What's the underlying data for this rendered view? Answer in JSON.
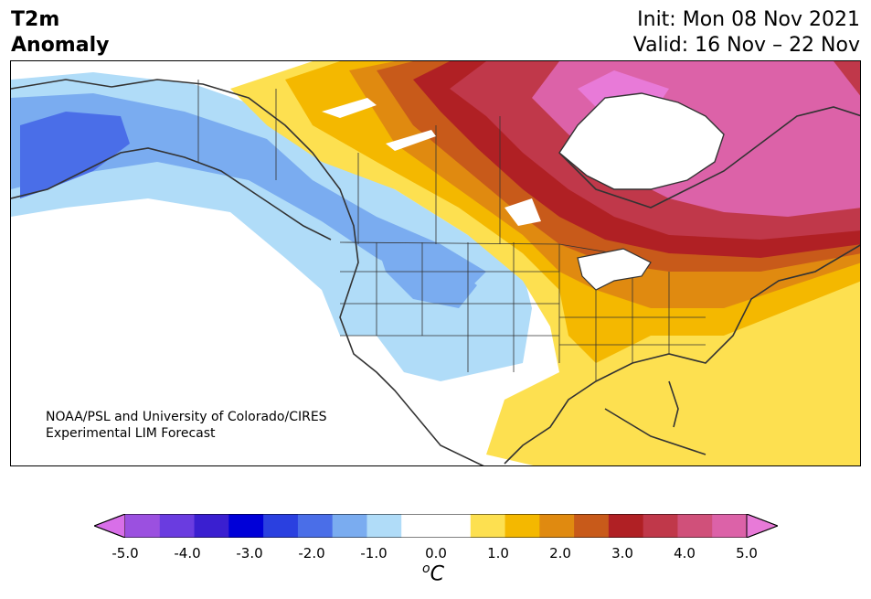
{
  "title": {
    "line1": "T2m",
    "line2": "Anomaly"
  },
  "header": {
    "init": "Init: Mon 08 Nov 2021",
    "valid": "Valid: 16 Nov – 22 Nov"
  },
  "credit": {
    "line1": "NOAA/PSL and University of Colorado/CIRES",
    "line2": "Experimental LIM Forecast"
  },
  "colorbar": {
    "unit": "C",
    "unit_prefix": "o",
    "tick_labels": [
      "-5.0",
      "-4.0",
      "-3.0",
      "-2.0",
      "-1.0",
      "0.0",
      "1.0",
      "2.0",
      "3.0",
      "4.0",
      "5.0"
    ],
    "colors": [
      "#d86fe8",
      "#9b50e0",
      "#6a3ce0",
      "#3a1fd0",
      "#0000d8",
      "#2a40e0",
      "#4a6ee8",
      "#7aacf0",
      "#b0dcf8",
      "#ffffff",
      "#ffffff",
      "#fde050",
      "#f4b800",
      "#e08a10",
      "#c85a1a",
      "#b02024",
      "#c0384a",
      "#d0507a",
      "#dc62a8",
      "#e87ad8"
    ]
  }
}
